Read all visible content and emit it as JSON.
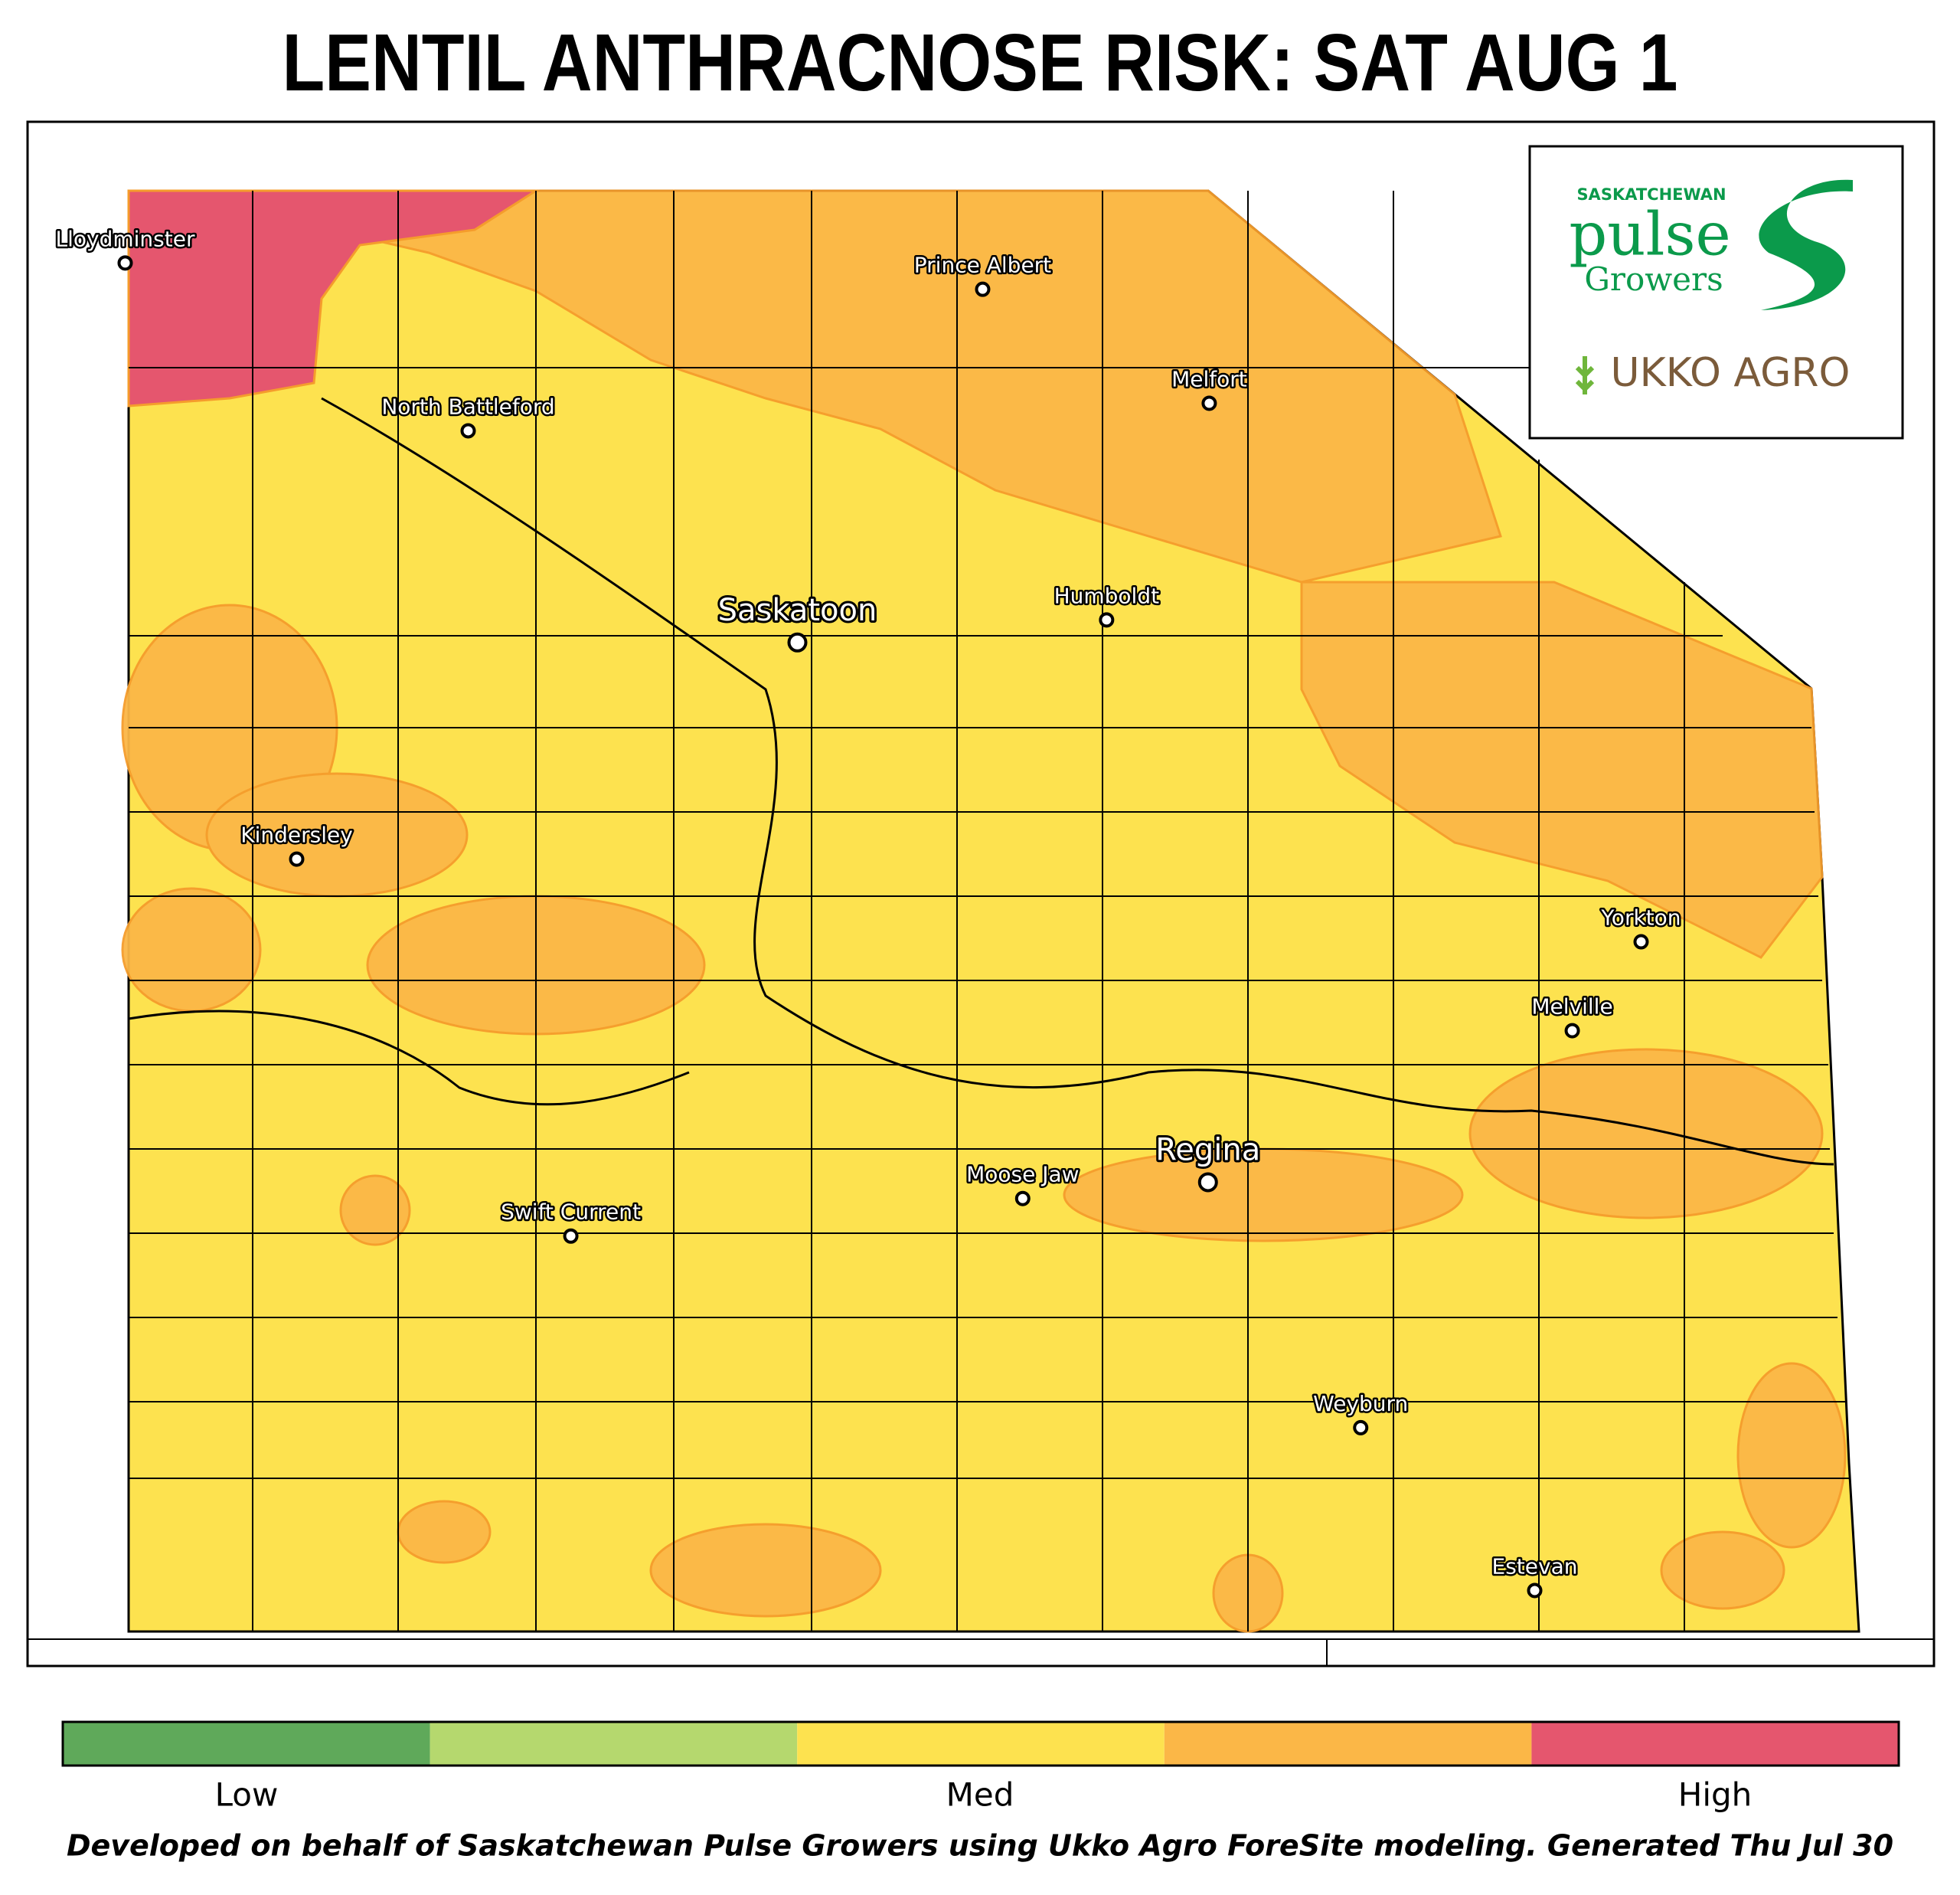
{
  "title": "LENTIL ANTHRACNOSE RISK: SAT AUG 1",
  "logo": {
    "org": "SASKATCHEWAN",
    "word1": "pulse",
    "word2": "Growers",
    "partner": "UKKO AGRO"
  },
  "cities": [
    {
      "name": "Lloydminster"
    },
    {
      "name": "Prince Albert"
    },
    {
      "name": "Melfort"
    },
    {
      "name": "North Battleford"
    },
    {
      "name": "Saskatoon"
    },
    {
      "name": "Humboldt"
    },
    {
      "name": "Kindersley"
    },
    {
      "name": "Yorkton"
    },
    {
      "name": "Melville"
    },
    {
      "name": "Regina"
    },
    {
      "name": "Moose Jaw"
    },
    {
      "name": "Swift Current"
    },
    {
      "name": "Weyburn"
    },
    {
      "name": "Estevan"
    }
  ],
  "legend": {
    "colors": [
      "#5fa95a",
      "#b5d86e",
      "#fde24f",
      "#fbb747",
      "#e5566e"
    ],
    "labels": [
      "Low",
      "Med",
      "High"
    ]
  },
  "footer": "Developed on behalf of Saskatchewan Pulse Growers using Ukko Agro ForeSite modeling. Generated Thu Jul 30"
}
